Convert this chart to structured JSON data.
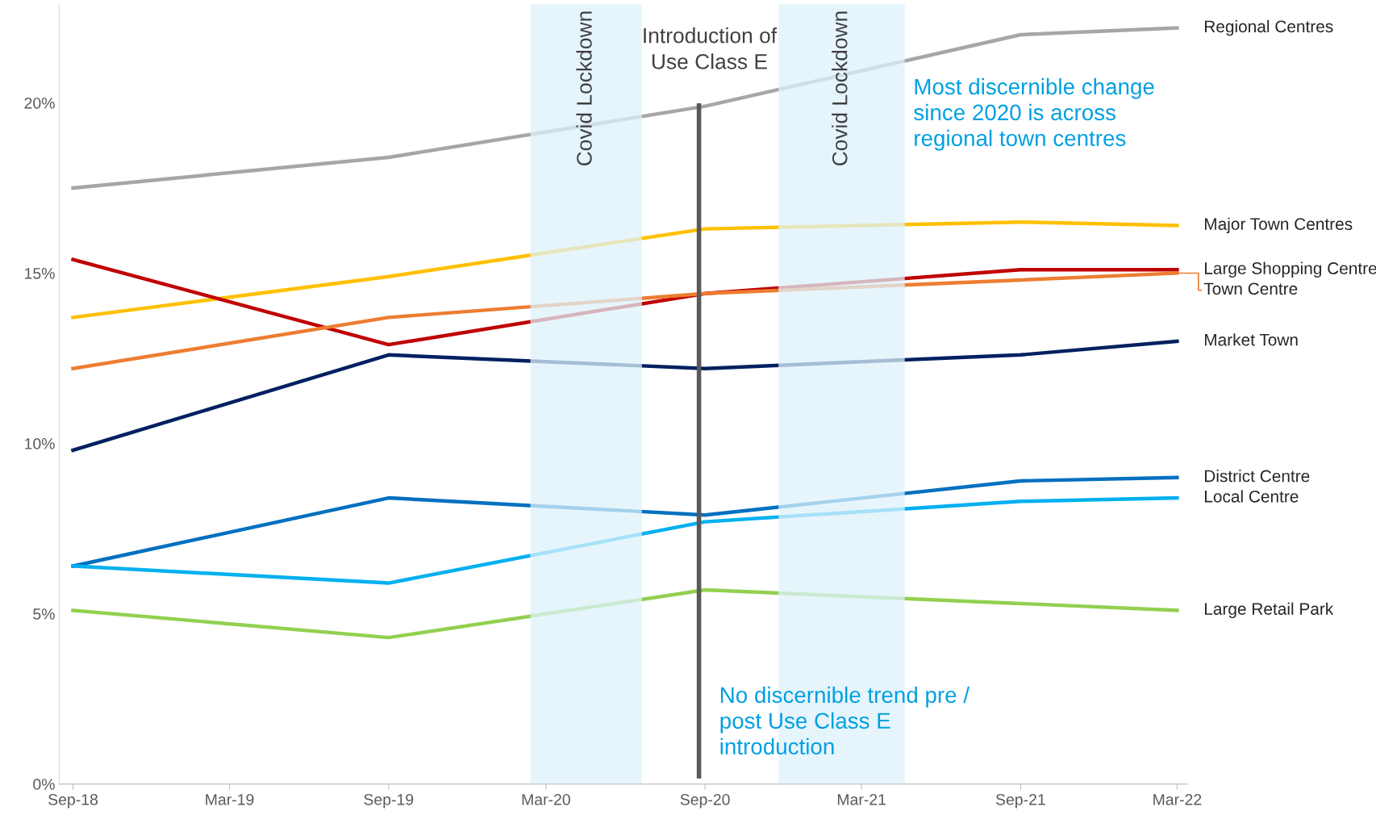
{
  "chart_data": {
    "type": "line",
    "x": [
      "2018-09",
      "2019-09",
      "2020-09",
      "2021-09",
      "2022-03"
    ],
    "series": [
      {
        "name": "Regional Centres",
        "color": "#a6a6a6",
        "values": [
          17.5,
          18.4,
          19.9,
          22.0,
          22.2
        ]
      },
      {
        "name": "Major Town Centres",
        "color": "#ffc000",
        "values": [
          13.7,
          14.9,
          16.3,
          16.5,
          16.4
        ]
      },
      {
        "name": "Large Shopping Centre",
        "color": "#c00000",
        "values": [
          15.4,
          12.9,
          14.4,
          15.1,
          15.1
        ]
      },
      {
        "name": "Town Centre",
        "color": "#ed7d31",
        "values": [
          12.2,
          13.7,
          14.4,
          14.8,
          15.0
        ]
      },
      {
        "name": "Market Town",
        "color": "#002060",
        "values": [
          9.8,
          12.6,
          12.2,
          12.6,
          13.0
        ]
      },
      {
        "name": "District Centre",
        "color": "#0070c0",
        "values": [
          6.4,
          8.4,
          7.9,
          8.9,
          9.0
        ]
      },
      {
        "name": "Local Centre",
        "color": "#00b0f0",
        "values": [
          6.4,
          5.9,
          7.7,
          8.3,
          8.4
        ]
      },
      {
        "name": "Large Retail Park",
        "color": "#92d050",
        "values": [
          5.1,
          4.3,
          5.7,
          5.3,
          5.1
        ]
      }
    ],
    "xlim": [
      "2018-08-16",
      "2022-03-13"
    ],
    "xticks": [
      {
        "value": "2018-09",
        "label": "Sep-18"
      },
      {
        "value": "2019-03",
        "label": "Mar-19"
      },
      {
        "value": "2019-09",
        "label": "Sep-19"
      },
      {
        "value": "2020-03",
        "label": "Mar-20"
      },
      {
        "value": "2020-09",
        "label": "Sep-20"
      },
      {
        "value": "2021-03",
        "label": "Mar-21"
      },
      {
        "value": "2021-09",
        "label": "Sep-21"
      },
      {
        "value": "2022-03",
        "label": "Mar-22"
      }
    ],
    "ylim": [
      0,
      22.9
    ],
    "yticks": [
      {
        "value": 0,
        "label": "0%"
      },
      {
        "value": 5,
        "label": "5%"
      },
      {
        "value": 10,
        "label": "10%"
      },
      {
        "value": 15,
        "label": "15%"
      },
      {
        "value": 20,
        "label": "20%"
      }
    ],
    "bands": [
      {
        "axis": "x",
        "from": "2020-02-12",
        "to": "2020-06-20",
        "label": "Covid Lockdown",
        "color": "#ddf2fb"
      },
      {
        "axis": "x",
        "from": "2020-11-25",
        "to": "2021-04-20",
        "label": "Covid Lockdown",
        "color": "#ddf2fb"
      }
    ],
    "ref_lines": [
      {
        "axis": "x",
        "value": "2020-08-25",
        "label": "Introduction of\nUse Class E",
        "color": "#595959"
      }
    ],
    "annotations": [
      "Most discernible change\nsince 2020 is across\nregional town centres",
      "No discernible trend pre /\npost Use Class E\nintroduction"
    ],
    "grid": false,
    "legend": false,
    "marker": "none",
    "line_style": "solid"
  }
}
